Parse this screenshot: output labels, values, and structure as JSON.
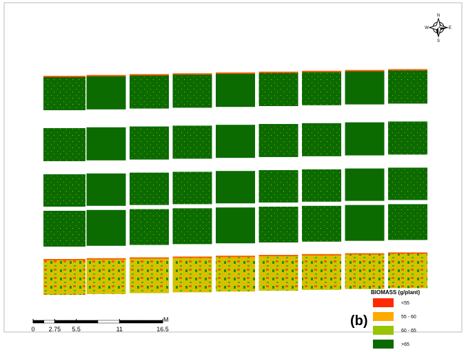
{
  "compass": {
    "n": "N",
    "e": "E",
    "s": "S",
    "w": "W"
  },
  "panel_label": "(b)",
  "legend": {
    "title": "BIOMASS (g/plant)",
    "items": [
      {
        "label": "<55",
        "color": "#ff2a00"
      },
      {
        "label": "55 - 60",
        "color": "#ffaa00"
      },
      {
        "label": "60 - 65",
        "color": "#98c400"
      },
      {
        "label": ">65",
        "color": "#0b6b00"
      }
    ]
  },
  "scale_bar": {
    "unit": "M",
    "ticks": [
      0,
      2.75,
      5.5,
      11,
      16.5
    ]
  }
}
